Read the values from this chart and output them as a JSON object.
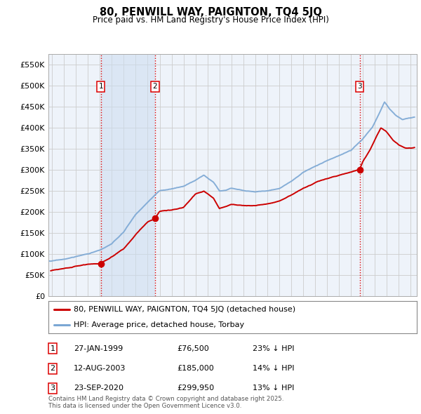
{
  "title": "80, PENWILL WAY, PAIGNTON, TQ4 5JQ",
  "subtitle": "Price paid vs. HM Land Registry's House Price Index (HPI)",
  "ytick_values": [
    0,
    50000,
    100000,
    150000,
    200000,
    250000,
    300000,
    350000,
    400000,
    450000,
    500000,
    550000
  ],
  "ylim": [
    0,
    575000
  ],
  "xlim_start": 1994.7,
  "xlim_end": 2025.5,
  "vline_color": "#dd0000",
  "sale_dates": [
    1999.08,
    2003.62,
    2020.73
  ],
  "sale_prices": [
    76500,
    185000,
    299950
  ],
  "sale_labels": [
    "1",
    "2",
    "3"
  ],
  "legend_line1": "80, PENWILL WAY, PAIGNTON, TQ4 5JQ (detached house)",
  "legend_line2": "HPI: Average price, detached house, Torbay",
  "table_data": [
    [
      "1",
      "27-JAN-1999",
      "£76,500",
      "23% ↓ HPI"
    ],
    [
      "2",
      "12-AUG-2003",
      "£185,000",
      "14% ↓ HPI"
    ],
    [
      "3",
      "23-SEP-2020",
      "£299,950",
      "13% ↓ HPI"
    ]
  ],
  "footer": "Contains HM Land Registry data © Crown copyright and database right 2025.\nThis data is licensed under the Open Government Licence v3.0.",
  "hpi_color": "#7ba7d4",
  "price_color": "#cc0000",
  "grid_color": "#cccccc",
  "bg_chart": "#eef3fa",
  "shade_color": "#dce8f5"
}
